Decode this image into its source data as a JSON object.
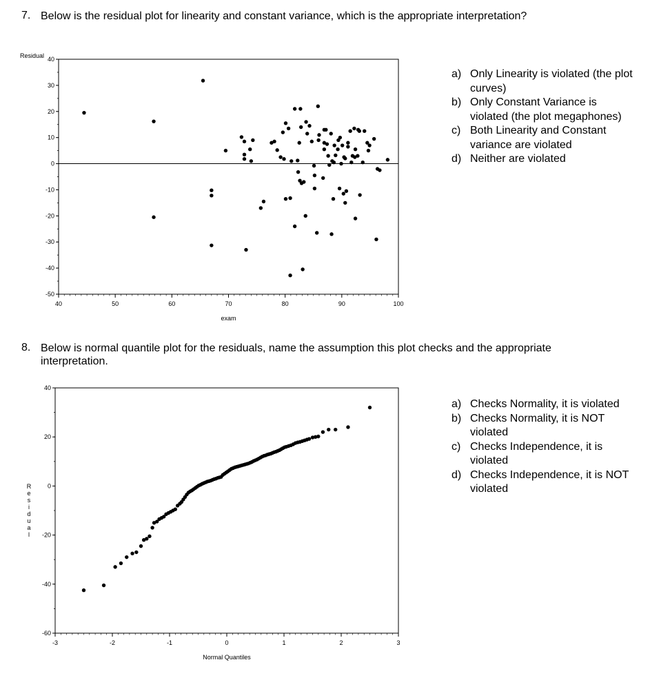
{
  "q7": {
    "number": "7.",
    "text": "Below is the residual plot for linearity and constant variance, which is the appropriate interpretation?",
    "options": [
      {
        "letter": "a)",
        "text": "Only Linearity is violated (the plot curves)"
      },
      {
        "letter": "b)",
        "text": "Only Constant Variance is violated (the plot megaphones)"
      },
      {
        "letter": "c)",
        "text": "Both Linearity and Constant variance are violated"
      },
      {
        "letter": "d)",
        "text": "Neither are violated"
      }
    ]
  },
  "q8": {
    "number": "8.",
    "text_line1": "Below is normal quantile plot for the residuals, name the assumption this plot checks and the appropriate",
    "text_line2": "interpretation.",
    "options": [
      {
        "letter": "a)",
        "text": "Checks Normality, it is violated"
      },
      {
        "letter": "b)",
        "text": "Checks Normality, it is NOT violated"
      },
      {
        "letter": "c)",
        "text": "Checks Independence, it is violated"
      },
      {
        "letter": "d)",
        "text": "Checks Independence, it is NOT violated"
      }
    ]
  },
  "chart_data": [
    {
      "type": "scatter",
      "title": "",
      "xlabel": "exam",
      "ylabel": "Residual",
      "xlim": [
        40,
        100
      ],
      "ylim": [
        -50,
        40
      ],
      "x_ticks": [
        40,
        50,
        60,
        70,
        80,
        90,
        100
      ],
      "y_ticks": [
        -50,
        -40,
        -30,
        -20,
        -10,
        0,
        10,
        20,
        30,
        40
      ],
      "reference_line_y": 0,
      "grid": false,
      "points": [
        [
          44.5,
          19.5
        ],
        [
          56.8,
          16.2
        ],
        [
          56.8,
          -20.5
        ],
        [
          65.5,
          31.8
        ],
        [
          67,
          -10.2
        ],
        [
          67,
          -12.2
        ],
        [
          67,
          -31.3
        ],
        [
          69.5,
          5
        ],
        [
          72.3,
          10.2
        ],
        [
          72.8,
          8.5
        ],
        [
          72.8,
          3.5
        ],
        [
          72.8,
          1.8
        ],
        [
          73.1,
          -33
        ],
        [
          73.8,
          5.5
        ],
        [
          74,
          1
        ],
        [
          74.3,
          9
        ],
        [
          75.7,
          -17
        ],
        [
          76.2,
          -14.5
        ],
        [
          77.6,
          8
        ],
        [
          78.1,
          8.5
        ],
        [
          78.6,
          5.2
        ],
        [
          79.2,
          2.5
        ],
        [
          79.6,
          12
        ],
        [
          79.8,
          1.8
        ],
        [
          80.1,
          15.5
        ],
        [
          80.1,
          -13.5
        ],
        [
          80.6,
          13.5
        ],
        [
          80.9,
          -42.8
        ],
        [
          80.9,
          -13.2
        ],
        [
          81.1,
          1
        ],
        [
          81.7,
          -24
        ],
        [
          81.7,
          21
        ],
        [
          82.2,
          1.2
        ],
        [
          82.3,
          -3.2
        ],
        [
          82.5,
          8
        ],
        [
          82.6,
          -6.5
        ],
        [
          82.7,
          21
        ],
        [
          82.8,
          14
        ],
        [
          82.9,
          -7.5
        ],
        [
          83.1,
          -40.5
        ],
        [
          83.3,
          -7
        ],
        [
          83.6,
          -20
        ],
        [
          83.7,
          16
        ],
        [
          83.9,
          11.5
        ],
        [
          84.3,
          14.5
        ],
        [
          84.7,
          8.5
        ],
        [
          85.1,
          -0.8
        ],
        [
          85.2,
          -4.5
        ],
        [
          85.2,
          -9.5
        ],
        [
          85.6,
          -26.5
        ],
        [
          85.8,
          22
        ],
        [
          85.9,
          9
        ],
        [
          86,
          11
        ],
        [
          86.7,
          -5.5
        ],
        [
          86.9,
          13
        ],
        [
          86.9,
          8
        ],
        [
          86.9,
          5.5
        ],
        [
          87.2,
          13
        ],
        [
          87.4,
          7.5
        ],
        [
          87.6,
          3
        ],
        [
          87.8,
          -0.5
        ],
        [
          88.1,
          11.5
        ],
        [
          88.2,
          -27
        ],
        [
          88.3,
          1
        ],
        [
          88.5,
          -13.5
        ],
        [
          88.6,
          0.5
        ],
        [
          88.7,
          7
        ],
        [
          88.9,
          3.2
        ],
        [
          89.3,
          5.5
        ],
        [
          89.4,
          9
        ],
        [
          89.6,
          -9.5
        ],
        [
          89.7,
          10
        ],
        [
          89.9,
          0
        ],
        [
          90.1,
          7
        ],
        [
          90.3,
          -11.5
        ],
        [
          90.4,
          2.5
        ],
        [
          90.6,
          -15
        ],
        [
          90.6,
          2
        ],
        [
          90.8,
          -10.5
        ],
        [
          91.1,
          6.5
        ],
        [
          91.1,
          8
        ],
        [
          91.5,
          12.5
        ],
        [
          91.7,
          0.5
        ],
        [
          91.9,
          3
        ],
        [
          92.2,
          13.5
        ],
        [
          92.3,
          2.5
        ],
        [
          92.4,
          -21
        ],
        [
          92.4,
          5.5
        ],
        [
          92.8,
          3
        ],
        [
          92.9,
          13
        ],
        [
          93.1,
          12.5
        ],
        [
          93.2,
          -12
        ],
        [
          93.7,
          0.5
        ],
        [
          94,
          12.5
        ],
        [
          94.5,
          8
        ],
        [
          94.7,
          5
        ],
        [
          94.9,
          7
        ],
        [
          95.7,
          9.5
        ],
        [
          96.1,
          -29
        ],
        [
          96.3,
          -2
        ],
        [
          96.7,
          -2.5
        ],
        [
          98.1,
          1.5
        ]
      ]
    },
    {
      "type": "scatter",
      "title": "",
      "xlabel": "Normal Quantiles",
      "ylabel": "Residual",
      "xlim": [
        -3,
        3
      ],
      "ylim": [
        -60,
        40
      ],
      "x_ticks": [
        -3,
        -2,
        -1,
        0,
        1,
        2,
        3
      ],
      "y_ticks": [
        -60,
        -40,
        -20,
        0,
        20,
        40
      ],
      "grid": false,
      "points": [
        [
          -2.5,
          -42.5
        ],
        [
          -2.15,
          -40.5
        ],
        [
          -1.95,
          -33
        ],
        [
          -1.85,
          -31.5
        ],
        [
          -1.75,
          -29
        ],
        [
          -1.65,
          -27.5
        ],
        [
          -1.58,
          -27
        ],
        [
          -1.5,
          -24.5
        ],
        [
          -1.45,
          -22
        ],
        [
          -1.4,
          -21.5
        ],
        [
          -1.35,
          -20.5
        ],
        [
          -1.3,
          -17
        ],
        [
          -1.27,
          -15
        ],
        [
          -1.22,
          -14.5
        ],
        [
          -1.18,
          -13.5
        ],
        [
          -1.14,
          -13
        ],
        [
          -1.1,
          -12.5
        ],
        [
          -1.06,
          -11.5
        ],
        [
          -1.02,
          -11
        ],
        [
          -0.98,
          -10.5
        ],
        [
          -0.94,
          -10
        ],
        [
          -0.9,
          -9.5
        ],
        [
          -0.86,
          -8
        ],
        [
          -0.82,
          -7.2
        ],
        [
          -0.79,
          -6.5
        ],
        [
          -0.76,
          -5.5
        ],
        [
          -0.73,
          -4.5
        ],
        [
          -0.7,
          -3.5
        ],
        [
          -0.67,
          -2.7
        ],
        [
          -0.64,
          -2.2
        ],
        [
          -0.61,
          -1.8
        ],
        [
          -0.58,
          -1.3
        ],
        [
          -0.55,
          -0.8
        ],
        [
          -0.52,
          -0.3
        ],
        [
          -0.49,
          0.2
        ],
        [
          -0.46,
          0.5
        ],
        [
          -0.43,
          0.9
        ],
        [
          -0.4,
          1.2
        ],
        [
          -0.37,
          1.5
        ],
        [
          -0.34,
          1.8
        ],
        [
          -0.31,
          2
        ],
        [
          -0.28,
          2.2
        ],
        [
          -0.25,
          2.5
        ],
        [
          -0.22,
          2.8
        ],
        [
          -0.19,
          3
        ],
        [
          -0.16,
          3.3
        ],
        [
          -0.13,
          3.5
        ],
        [
          -0.1,
          3.7
        ],
        [
          -0.07,
          4.5
        ],
        [
          -0.04,
          5
        ],
        [
          -0.01,
          5.5
        ],
        [
          0.02,
          6
        ],
        [
          0.05,
          6.5
        ],
        [
          0.08,
          7
        ],
        [
          0.11,
          7.3
        ],
        [
          0.14,
          7.6
        ],
        [
          0.17,
          7.8
        ],
        [
          0.2,
          8
        ],
        [
          0.23,
          8.2
        ],
        [
          0.26,
          8.4
        ],
        [
          0.29,
          8.6
        ],
        [
          0.32,
          8.8
        ],
        [
          0.35,
          9
        ],
        [
          0.38,
          9.2
        ],
        [
          0.41,
          9.5
        ],
        [
          0.44,
          9.8
        ],
        [
          0.47,
          10.2
        ],
        [
          0.5,
          10.5
        ],
        [
          0.53,
          10.8
        ],
        [
          0.56,
          11.2
        ],
        [
          0.59,
          11.6
        ],
        [
          0.62,
          12
        ],
        [
          0.65,
          12.3
        ],
        [
          0.68,
          12.5
        ],
        [
          0.71,
          12.8
        ],
        [
          0.74,
          13
        ],
        [
          0.77,
          13.2
        ],
        [
          0.8,
          13.5
        ],
        [
          0.83,
          13.8
        ],
        [
          0.86,
          14
        ],
        [
          0.89,
          14.3
        ],
        [
          0.92,
          14.6
        ],
        [
          0.95,
          15
        ],
        [
          0.98,
          15.4
        ],
        [
          1.01,
          15.8
        ],
        [
          1.04,
          16
        ],
        [
          1.08,
          16.3
        ],
        [
          1.12,
          16.6
        ],
        [
          1.16,
          17
        ],
        [
          1.2,
          17.5
        ],
        [
          1.24,
          17.8
        ],
        [
          1.28,
          18
        ],
        [
          1.32,
          18.3
        ],
        [
          1.36,
          18.6
        ],
        [
          1.4,
          18.9
        ],
        [
          1.44,
          19.2
        ],
        [
          1.5,
          19.8
        ],
        [
          1.55,
          20
        ],
        [
          1.6,
          20.2
        ],
        [
          1.68,
          22
        ],
        [
          1.78,
          23
        ],
        [
          1.9,
          23
        ],
        [
          2.12,
          24
        ],
        [
          2.5,
          32
        ]
      ]
    }
  ]
}
